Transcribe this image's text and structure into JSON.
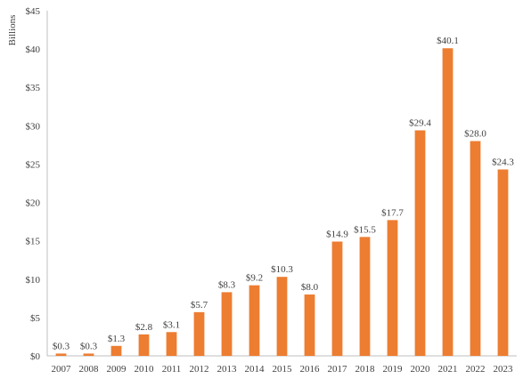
{
  "chart_data": {
    "type": "bar",
    "title": "",
    "xlabel": "",
    "ylabel": "Billions",
    "ylim": [
      0,
      45
    ],
    "yticks": [
      0,
      5,
      10,
      15,
      20,
      25,
      30,
      35,
      40,
      45
    ],
    "ytick_labels": [
      "$0",
      "$5",
      "$10",
      "$15",
      "$20",
      "$25",
      "$30",
      "$35",
      "$40",
      "$45"
    ],
    "grid": false,
    "legend": "none",
    "bar_color": "#ED7D31",
    "categories": [
      "2007",
      "2008",
      "2009",
      "2010",
      "2011",
      "2012",
      "2013",
      "2014",
      "2015",
      "2016",
      "2017",
      "2018",
      "2019",
      "2020",
      "2021",
      "2022",
      "2023"
    ],
    "values": [
      0.3,
      0.3,
      1.3,
      2.8,
      3.1,
      5.7,
      8.3,
      9.2,
      10.3,
      8.0,
      14.9,
      15.5,
      17.7,
      29.4,
      40.1,
      28.0,
      24.3
    ],
    "data_labels": [
      "$0.3",
      "$0.3",
      "$1.3",
      "$2.8",
      "$3.1",
      "$5.7",
      "$8.3",
      "$9.2",
      "$10.3",
      "$8.0",
      "$14.9",
      "$15.5",
      "$17.7",
      "$29.4",
      "$40.1",
      "$28.0",
      "$24.3"
    ]
  }
}
